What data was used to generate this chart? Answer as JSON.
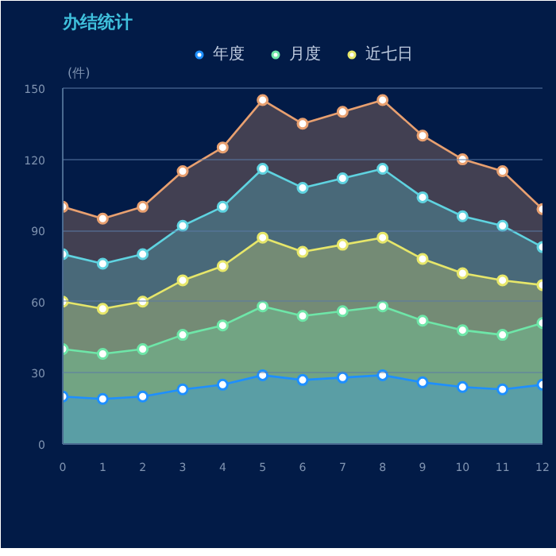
{
  "chart_data": {
    "type": "area",
    "title": "办结统计",
    "ylabel": "(件)",
    "x": [
      0,
      1,
      2,
      3,
      4,
      5,
      6,
      7,
      8,
      9,
      10,
      11,
      12
    ],
    "xlim": [
      0,
      12
    ],
    "xticks": [
      0,
      1,
      2,
      3,
      4,
      5,
      6,
      7,
      8,
      9,
      10,
      11,
      12
    ],
    "ylim": [
      0,
      150
    ],
    "yticks": [
      0,
      30,
      60,
      90,
      120,
      150
    ],
    "grid": "y",
    "legend": "top",
    "marker": "circle",
    "series": [
      {
        "name": "年度",
        "color": "#1e8fff",
        "values": [
          20,
          19,
          20,
          23,
          25,
          29,
          27,
          28,
          29,
          26,
          24,
          23,
          25
        ]
      },
      {
        "name": "月度",
        "color": "#6ee6a8",
        "values": [
          40,
          38,
          40,
          46,
          50,
          58,
          54,
          56,
          58,
          52,
          48,
          46,
          51
        ]
      },
      {
        "name": "近七日",
        "color": "#e6e66a",
        "values": [
          60,
          57,
          60,
          69,
          75,
          87,
          81,
          84,
          87,
          78,
          72,
          69,
          67
        ]
      },
      {
        "color": "#5fd3e0",
        "values": [
          80,
          76,
          80,
          92,
          100,
          116,
          108,
          112,
          116,
          104,
          96,
          92,
          83
        ]
      },
      {
        "color": "#e8a070",
        "values": [
          100,
          95,
          100,
          115,
          125,
          145,
          135,
          140,
          145,
          130,
          120,
          115,
          99
        ]
      }
    ]
  }
}
